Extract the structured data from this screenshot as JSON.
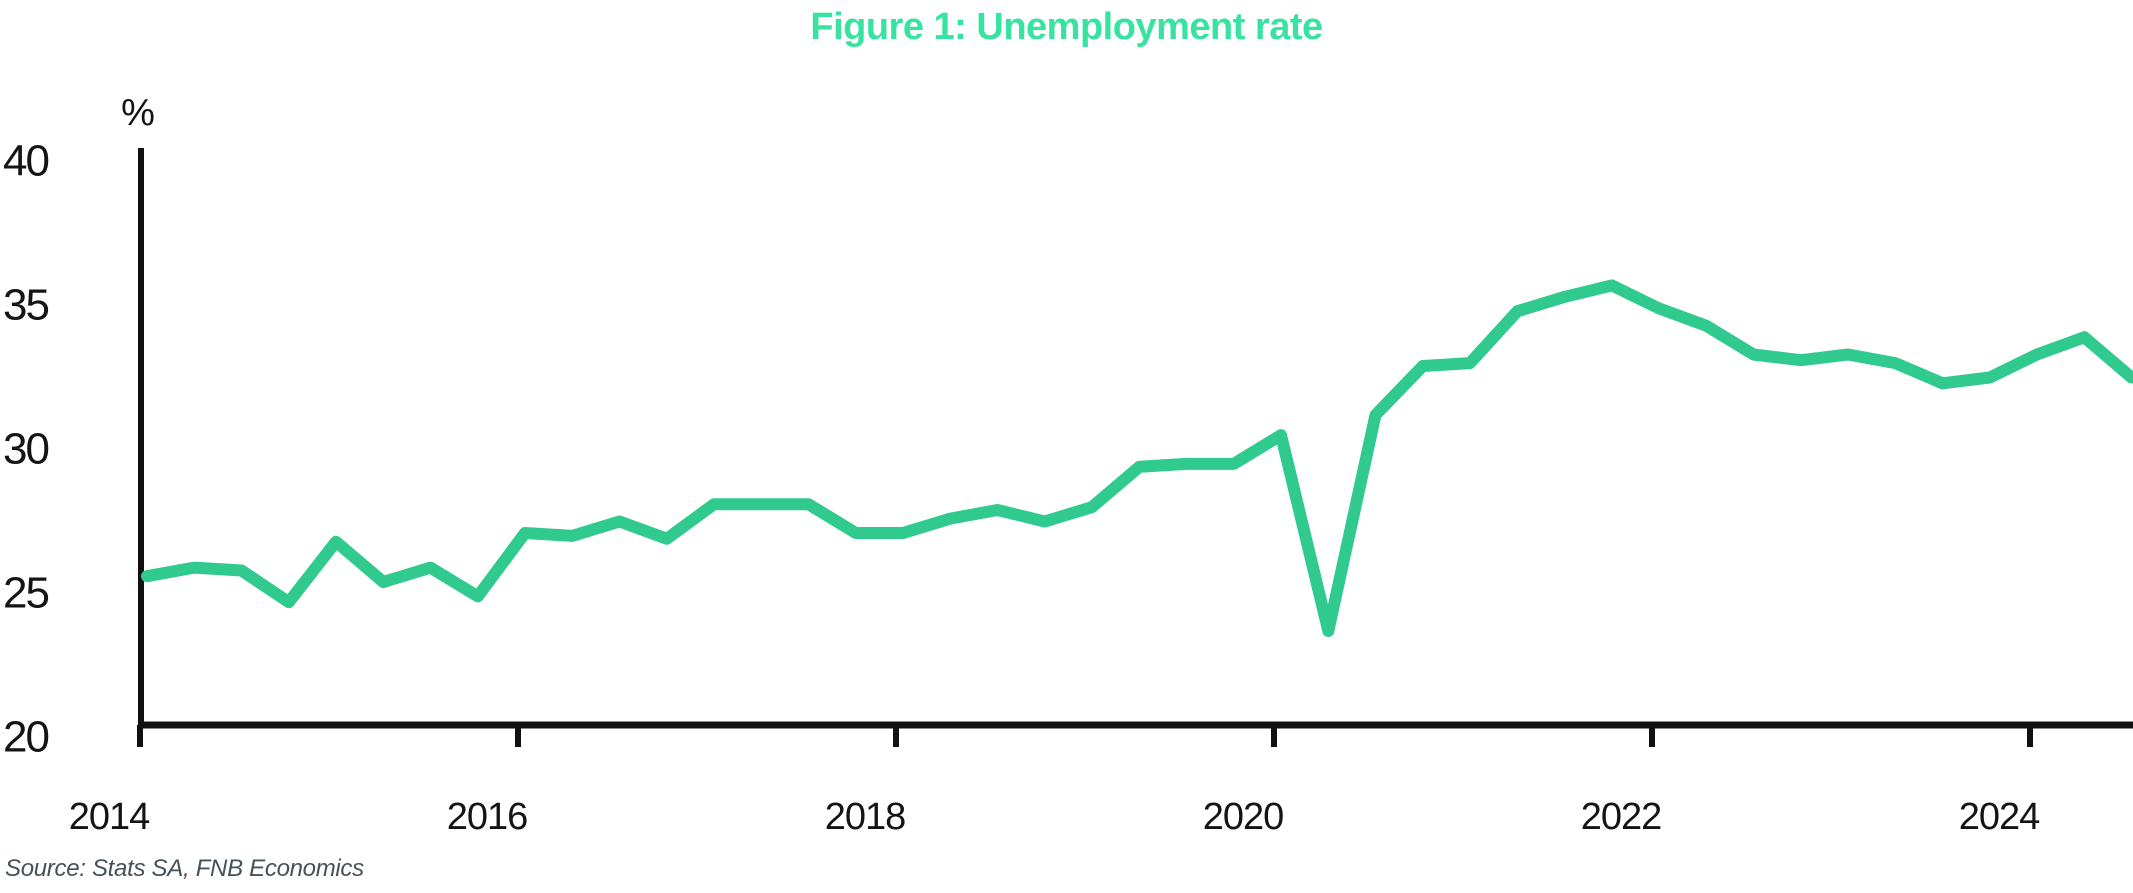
{
  "chart_data": {
    "type": "line",
    "title": "Figure 1: Unemployment rate",
    "ylabel": "%",
    "xlabel": "",
    "source": "Source: Stats SA, FNB Economics",
    "frequency": "quarterly",
    "x_start": "2014Q1",
    "x_end": "2024Q3",
    "ylim": [
      20,
      40
    ],
    "grid": false,
    "legend_position": "none",
    "y_ticks": [
      40,
      35,
      30,
      25,
      20
    ],
    "x_tick_labels": [
      "2014",
      "2016",
      "2018",
      "2020",
      "2022",
      "2024"
    ],
    "x_tick_years": [
      2014,
      2016,
      2018,
      2020,
      2022,
      2024
    ],
    "series": [
      {
        "name": "Unemployment rate (%)",
        "periods": [
          "2014Q1",
          "2014Q2",
          "2014Q3",
          "2014Q4",
          "2015Q1",
          "2015Q2",
          "2015Q3",
          "2015Q4",
          "2016Q1",
          "2016Q2",
          "2016Q3",
          "2016Q4",
          "2017Q1",
          "2017Q2",
          "2017Q3",
          "2017Q4",
          "2018Q1",
          "2018Q2",
          "2018Q3",
          "2018Q4",
          "2019Q1",
          "2019Q2",
          "2019Q3",
          "2019Q4",
          "2020Q1",
          "2020Q2",
          "2020Q3",
          "2020Q4",
          "2021Q1",
          "2021Q2",
          "2021Q3",
          "2021Q4",
          "2022Q1",
          "2022Q2",
          "2022Q3",
          "2022Q4",
          "2023Q1",
          "2023Q2",
          "2023Q3",
          "2023Q4",
          "2024Q1",
          "2024Q2",
          "2024Q3"
        ],
        "values": [
          25.2,
          25.5,
          25.4,
          24.3,
          26.4,
          25.0,
          25.5,
          24.5,
          26.7,
          26.6,
          27.1,
          26.5,
          27.7,
          27.7,
          27.7,
          26.7,
          26.7,
          27.2,
          27.5,
          27.1,
          27.6,
          29.0,
          29.1,
          29.1,
          30.1,
          23.3,
          30.8,
          32.5,
          32.6,
          34.4,
          34.9,
          35.3,
          34.5,
          33.9,
          32.9,
          32.7,
          32.9,
          32.6,
          31.9,
          32.1,
          32.9,
          33.5,
          32.1
        ]
      }
    ],
    "colors": {
      "title": "#37e3a0",
      "line": "#30c98e",
      "axis": "#111111",
      "tick_label": "#141414",
      "source": "#45525a"
    }
  }
}
